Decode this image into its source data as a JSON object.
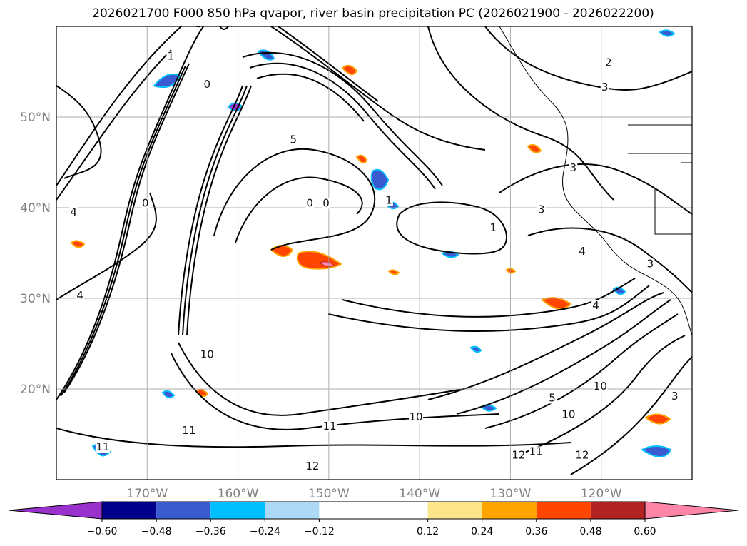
{
  "chart_data": {
    "type": "contour",
    "title": "2026021700 F000 850 hPa qvapor, river basin precipitation PC (2026021900 - 2026022200)",
    "xlim": [
      -180,
      -110
    ],
    "ylim": [
      10,
      60
    ],
    "x_ticks": [
      {
        "value": -170,
        "label": "170°W"
      },
      {
        "value": -160,
        "label": "160°W"
      },
      {
        "value": -150,
        "label": "150°W"
      },
      {
        "value": -140,
        "label": "140°W"
      },
      {
        "value": -130,
        "label": "130°W"
      },
      {
        "value": -120,
        "label": "120°W"
      }
    ],
    "y_ticks": [
      {
        "value": 20,
        "label": "20°N"
      },
      {
        "value": 30,
        "label": "30°N"
      },
      {
        "value": 40,
        "label": "40°N"
      },
      {
        "value": 50,
        "label": "50°N"
      }
    ],
    "grid": true,
    "colorbar": {
      "orientation": "horizontal",
      "extend": "both",
      "boundaries": [
        -0.72,
        -0.6,
        -0.48,
        -0.36,
        -0.24,
        -0.12,
        0.12,
        0.24,
        0.36,
        0.48,
        0.6,
        0.72
      ],
      "tick_labels": [
        "−0.60",
        "−0.48",
        "−0.36",
        "−0.24",
        "−0.12",
        "0.12",
        "0.24",
        "0.36",
        "0.48",
        "0.60"
      ],
      "colors": [
        "#9932cc",
        "#00008b",
        "#3a5bd0",
        "#00bfff",
        "#add8f6",
        "#ffffff",
        "#fde68a",
        "#ffa500",
        "#ff4500",
        "#b22222",
        "#ff85a8"
      ],
      "under_color": "#9932cc",
      "over_color": "#ff85a8"
    },
    "contour_labels": [
      {
        "lon": -178.1,
        "lat": 39.2,
        "text": "4"
      },
      {
        "lon": -177.4,
        "lat": 30.0,
        "text": "4"
      },
      {
        "lon": -174.9,
        "lat": 13.3,
        "text": "11"
      },
      {
        "lon": -170.2,
        "lat": 40.2,
        "text": "0"
      },
      {
        "lon": -167.4,
        "lat": 56.4,
        "text": "1"
      },
      {
        "lon": -163.4,
        "lat": 53.3,
        "text": "0"
      },
      {
        "lon": -163.4,
        "lat": 23.5,
        "text": "10"
      },
      {
        "lon": -165.4,
        "lat": 15.1,
        "text": "11"
      },
      {
        "lon": -153.9,
        "lat": 47.2,
        "text": "5"
      },
      {
        "lon": -152.1,
        "lat": 40.2,
        "text": "0"
      },
      {
        "lon": -150.3,
        "lat": 40.2,
        "text": "0"
      },
      {
        "lon": -151.8,
        "lat": 11.2,
        "text": "12"
      },
      {
        "lon": -149.9,
        "lat": 15.6,
        "text": "11"
      },
      {
        "lon": -143.4,
        "lat": 40.5,
        "text": "1"
      },
      {
        "lon": -140.4,
        "lat": 16.6,
        "text": "10"
      },
      {
        "lon": -131.9,
        "lat": 37.5,
        "text": "1"
      },
      {
        "lon": -129.1,
        "lat": 12.4,
        "text": "12"
      },
      {
        "lon": -126.6,
        "lat": 39.5,
        "text": "3"
      },
      {
        "lon": -127.2,
        "lat": 12.8,
        "text": "11"
      },
      {
        "lon": -125.4,
        "lat": 18.7,
        "text": "5"
      },
      {
        "lon": -123.6,
        "lat": 16.9,
        "text": "10"
      },
      {
        "lon": -123.1,
        "lat": 44.1,
        "text": "3"
      },
      {
        "lon": -122.1,
        "lat": 12.4,
        "text": "12"
      },
      {
        "lon": -122.1,
        "lat": 34.9,
        "text": "4"
      },
      {
        "lon": -120.6,
        "lat": 28.9,
        "text": "4"
      },
      {
        "lon": -120.1,
        "lat": 20.0,
        "text": "10"
      },
      {
        "lon": -119.6,
        "lat": 53.0,
        "text": "3"
      },
      {
        "lon": -119.2,
        "lat": 55.7,
        "text": "2"
      },
      {
        "lon": -114.6,
        "lat": 33.5,
        "text": "3"
      },
      {
        "lon": -111.9,
        "lat": 18.9,
        "text": "3"
      }
    ]
  }
}
